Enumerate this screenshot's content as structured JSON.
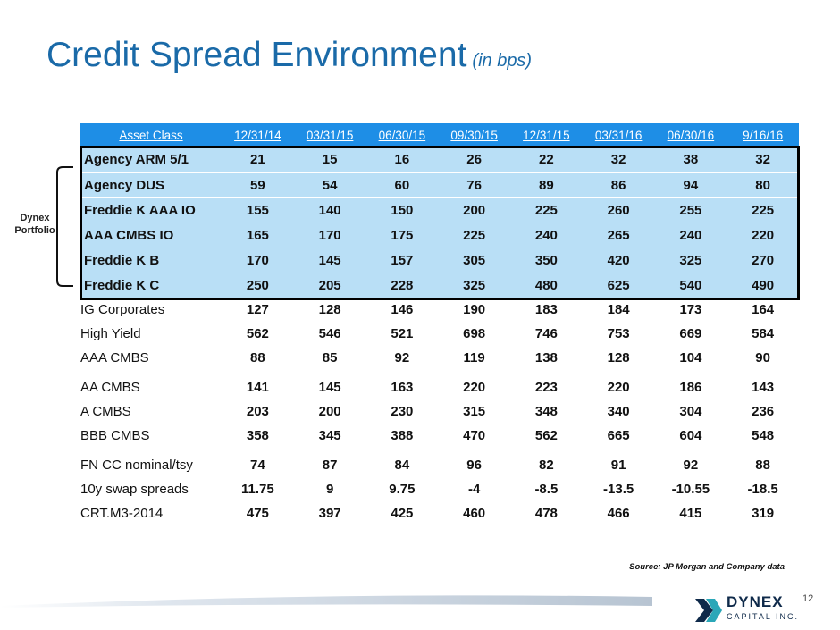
{
  "title": "Credit Spread Environment",
  "title_unit": "(in bps)",
  "table": {
    "headers": [
      "Asset Class",
      "12/31/14",
      "03/31/15",
      "06/30/15",
      "09/30/15",
      "12/31/15",
      "03/31/16",
      "06/30/16",
      "9/16/16"
    ],
    "dynex_rows": [
      {
        "label": "Agency ARM 5/1",
        "values": [
          "21",
          "15",
          "16",
          "26",
          "22",
          "32",
          "38",
          "32"
        ]
      },
      {
        "label": "Agency DUS",
        "values": [
          "59",
          "54",
          "60",
          "76",
          "89",
          "86",
          "94",
          "80"
        ]
      },
      {
        "label": "Freddie K AAA IO",
        "values": [
          "155",
          "140",
          "150",
          "200",
          "225",
          "260",
          "255",
          "225"
        ]
      },
      {
        "label": "AAA CMBS IO",
        "values": [
          "165",
          "170",
          "175",
          "225",
          "240",
          "265",
          "240",
          "220"
        ]
      },
      {
        "label": "Freddie K B",
        "values": [
          "170",
          "145",
          "157",
          "305",
          "350",
          "420",
          "325",
          "270"
        ]
      },
      {
        "label": "Freddie K C",
        "values": [
          "250",
          "205",
          "228",
          "325",
          "480",
          "625",
          "540",
          "490"
        ]
      }
    ],
    "other_groups": [
      [
        {
          "label": "IG Corporates",
          "values": [
            "127",
            "128",
            "146",
            "190",
            "183",
            "184",
            "173",
            "164"
          ]
        },
        {
          "label": "High Yield",
          "values": [
            "562",
            "546",
            "521",
            "698",
            "746",
            "753",
            "669",
            "584"
          ]
        },
        {
          "label": "AAA CMBS",
          "values": [
            "88",
            "85",
            "92",
            "119",
            "138",
            "128",
            "104",
            "90"
          ]
        }
      ],
      [
        {
          "label": "AA CMBS",
          "values": [
            "141",
            "145",
            "163",
            "220",
            "223",
            "220",
            "186",
            "143"
          ]
        },
        {
          "label": "A CMBS",
          "values": [
            "203",
            "200",
            "230",
            "315",
            "348",
            "340",
            "304",
            "236"
          ]
        },
        {
          "label": "BBB CMBS",
          "values": [
            "358",
            "345",
            "388",
            "470",
            "562",
            "665",
            "604",
            "548"
          ]
        }
      ],
      [
        {
          "label": "FN CC nominal/tsy",
          "values": [
            "74",
            "87",
            "84",
            "96",
            "82",
            "91",
            "92",
            "88"
          ]
        },
        {
          "label": "10y swap spreads",
          "values": [
            "11.75",
            "9",
            "9.75",
            "-4",
            "-8.5",
            "-13.5",
            "-10.55",
            "-18.5"
          ]
        },
        {
          "label": "CRT.M3-2014",
          "values": [
            "475",
            "397",
            "425",
            "460",
            "478",
            "466",
            "415",
            "319"
          ]
        }
      ]
    ]
  },
  "bracket_label": [
    "Dynex",
    "Portfolio"
  ],
  "source_note": "Source: JP Morgan and Company data",
  "page_number": "12",
  "logo": {
    "name": "DYNEX",
    "tagline": "CAPITAL INC."
  },
  "colors": {
    "title": "#1a6aa8",
    "header_bg": "#1e8ee6",
    "portfolio_bg": "#b9dff6",
    "logo_dark": "#0f2a4a",
    "logo_teal": "#2aa7b8"
  }
}
